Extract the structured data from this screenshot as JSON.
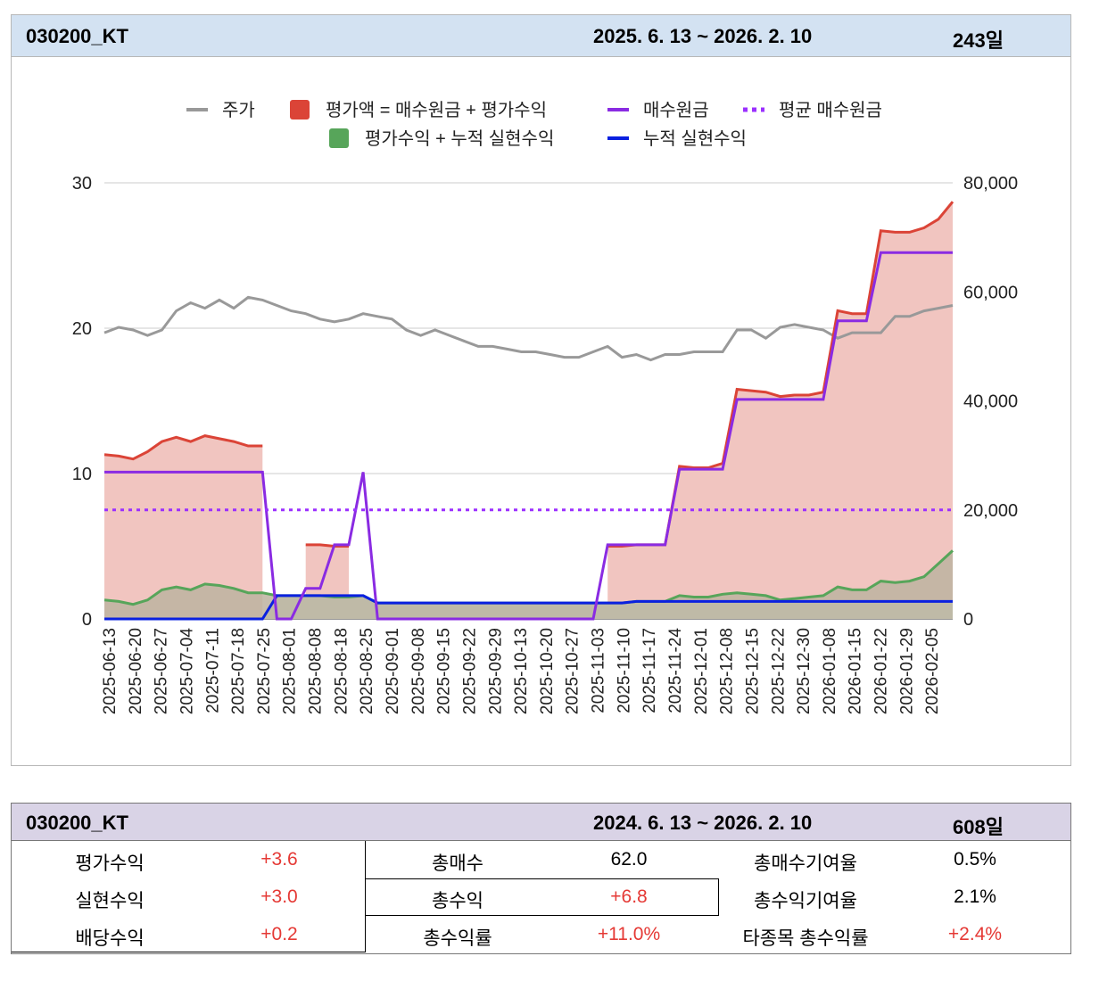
{
  "chart_header": {
    "ticker": "030200_KT",
    "period": "2025. 6. 13  ~ 2026. 2. 10",
    "days": "243일"
  },
  "colors": {
    "price": "#999999",
    "valuation": "#db4437",
    "valuation_fill": "#f1c5c0",
    "principal": "#8a2be2",
    "avg_principal": "#9b30ff",
    "gain": "#57a55a",
    "gain_fill": "#bdb3a0",
    "realized": "#0a20e0",
    "realized_fill": "#c7e1cf"
  },
  "chart_data": {
    "type": "line",
    "x_tick_labels": [
      "2025-06-13",
      "2025-06-20",
      "2025-06-27",
      "2025-07-04",
      "2025-07-11",
      "2025-07-18",
      "2025-07-25",
      "2025-08-01",
      "2025-08-08",
      "2025-08-18",
      "2025-08-25",
      "2025-09-01",
      "2025-09-08",
      "2025-09-15",
      "2025-09-22",
      "2025-09-29",
      "2025-10-13",
      "2025-10-20",
      "2025-10-27",
      "2025-11-03",
      "2025-11-10",
      "2025-11-17",
      "2025-11-24",
      "2025-12-01",
      "2025-12-08",
      "2025-12-15",
      "2025-12-22",
      "2025-12-30",
      "2026-01-08",
      "2026-01-15",
      "2026-01-22",
      "2026-01-29",
      "2026-02-05"
    ],
    "y_left": {
      "ticks": [
        "0",
        "10",
        "20",
        "30"
      ],
      "range": [
        0,
        30
      ]
    },
    "y_right": {
      "ticks": [
        "0",
        "20,000",
        "40,000",
        "60,000",
        "80,000"
      ],
      "range": [
        0,
        80000
      ]
    },
    "legend": {
      "placement": "top-center",
      "items": [
        {
          "label": "주가",
          "key": "price",
          "marker": "line"
        },
        {
          "label": "평가액 = 매수원금 + 평가수익",
          "key": "valuation",
          "marker": "square"
        },
        {
          "label": "매수원금",
          "key": "principal",
          "marker": "line"
        },
        {
          "label": "평균 매수원금",
          "key": "avg_principal",
          "marker": "dotted"
        },
        {
          "label": "평가수익 + 누적 실현수익",
          "key": "gain",
          "marker": "square"
        },
        {
          "label": "누적 실현수익",
          "key": "realized",
          "marker": "line"
        }
      ]
    },
    "series": [
      {
        "name": "주가",
        "axis": "right",
        "values": [
          52500,
          53500,
          53000,
          52000,
          53000,
          56500,
          58000,
          57000,
          58500,
          57000,
          59000,
          58500,
          57500,
          56500,
          56000,
          55000,
          54500,
          55000,
          56000,
          55500,
          55000,
          53000,
          52000,
          53000,
          52000,
          51000,
          50000,
          50000,
          49500,
          49000,
          49000,
          48500,
          48000,
          48000,
          49000,
          50000,
          48000,
          48500,
          47500,
          48500,
          48500,
          49000,
          49000,
          49000,
          53000,
          53000,
          51500,
          53500,
          54000,
          53500,
          53000,
          51500,
          52500,
          52500,
          52500,
          55500,
          55500,
          56500,
          57000,
          57500
        ]
      },
      {
        "name": "평가액 = 매수원금 + 평가수익",
        "axis": "left",
        "values": [
          11.3,
          11.2,
          11.0,
          11.5,
          12.2,
          12.5,
          12.2,
          12.6,
          12.4,
          12.2,
          11.9,
          11.9,
          null,
          null,
          5.1,
          5.1,
          5.0,
          5.0,
          null,
          null,
          null,
          null,
          null,
          null,
          null,
          null,
          null,
          null,
          null,
          null,
          null,
          null,
          null,
          null,
          null,
          5.0,
          5.0,
          5.1,
          5.1,
          5.1,
          10.5,
          10.4,
          10.4,
          10.7,
          15.8,
          15.7,
          15.6,
          15.3,
          15.4,
          15.4,
          15.6,
          21.2,
          21.0,
          21.0,
          26.7,
          26.6,
          26.6,
          26.9,
          27.5,
          28.7
        ]
      },
      {
        "name": "매수원금",
        "axis": "left",
        "values": [
          10.1,
          10.1,
          10.1,
          10.1,
          10.1,
          10.1,
          10.1,
          10.1,
          10.1,
          10.1,
          10.1,
          10.1,
          0,
          0,
          2.1,
          2.1,
          5.1,
          5.1,
          10.1,
          0,
          0,
          0,
          0,
          0,
          0,
          0,
          0,
          0,
          0,
          0,
          0,
          0,
          0,
          0,
          0,
          5.1,
          5.1,
          5.1,
          5.1,
          5.1,
          10.3,
          10.3,
          10.3,
          10.3,
          15.1,
          15.1,
          15.1,
          15.1,
          15.1,
          15.1,
          15.1,
          20.5,
          20.5,
          20.5,
          25.2,
          25.2,
          25.2,
          25.2,
          25.2,
          25.2
        ]
      },
      {
        "name": "평균 매수원금",
        "axis": "left",
        "values": [
          7.5
        ]
      },
      {
        "name": "평가수익 + 누적 실현수익",
        "axis": "left",
        "values": [
          1.3,
          1.2,
          1.0,
          1.3,
          2.0,
          2.2,
          2.0,
          2.4,
          2.3,
          2.1,
          1.8,
          1.8,
          1.6,
          1.6,
          1.6,
          1.6,
          1.5,
          1.5,
          1.6,
          1.1,
          1.1,
          1.1,
          1.1,
          1.1,
          1.1,
          1.1,
          1.1,
          1.1,
          1.1,
          1.1,
          1.1,
          1.1,
          1.1,
          1.1,
          1.1,
          1.1,
          1.1,
          1.2,
          1.2,
          1.2,
          1.6,
          1.5,
          1.5,
          1.7,
          1.8,
          1.7,
          1.6,
          1.3,
          1.4,
          1.5,
          1.6,
          2.2,
          2.0,
          2.0,
          2.6,
          2.5,
          2.6,
          2.9,
          3.8,
          4.7
        ]
      },
      {
        "name": "누적 실현수익",
        "axis": "left",
        "values": [
          0,
          0,
          0,
          0,
          0,
          0,
          0,
          0,
          0,
          0,
          0,
          0,
          1.6,
          1.6,
          1.6,
          1.6,
          1.6,
          1.6,
          1.6,
          1.1,
          1.1,
          1.1,
          1.1,
          1.1,
          1.1,
          1.1,
          1.1,
          1.1,
          1.1,
          1.1,
          1.1,
          1.1,
          1.1,
          1.1,
          1.1,
          1.1,
          1.1,
          1.2,
          1.2,
          1.2,
          1.2,
          1.2,
          1.2,
          1.2,
          1.2,
          1.2,
          1.2,
          1.2,
          1.2,
          1.2,
          1.2,
          1.2,
          1.2,
          1.2,
          1.2,
          1.2,
          1.2,
          1.2,
          1.2,
          1.2
        ]
      }
    ]
  },
  "summary": {
    "header": {
      "ticker": "030200_KT",
      "period": "2024. 6. 13  ~ 2026. 2. 10",
      "days": "608일"
    },
    "rows": [
      [
        {
          "label": "평가수익",
          "value": "+3.6"
        },
        {
          "label": "총매수",
          "value": "62.0"
        },
        {
          "label": "총매수기여율",
          "value": "0.5%"
        }
      ],
      [
        {
          "label": "실현수익",
          "value": "+3.0"
        },
        {
          "label": "총수익",
          "value": "+6.8"
        },
        {
          "label": "총수익기여율",
          "value": "2.1%"
        }
      ],
      [
        {
          "label": "배당수익",
          "value": "+0.2"
        },
        {
          "label": "총수익률",
          "value": "+11.0%"
        },
        {
          "label": "타종목 총수익률",
          "value": "+2.4%"
        }
      ]
    ]
  }
}
